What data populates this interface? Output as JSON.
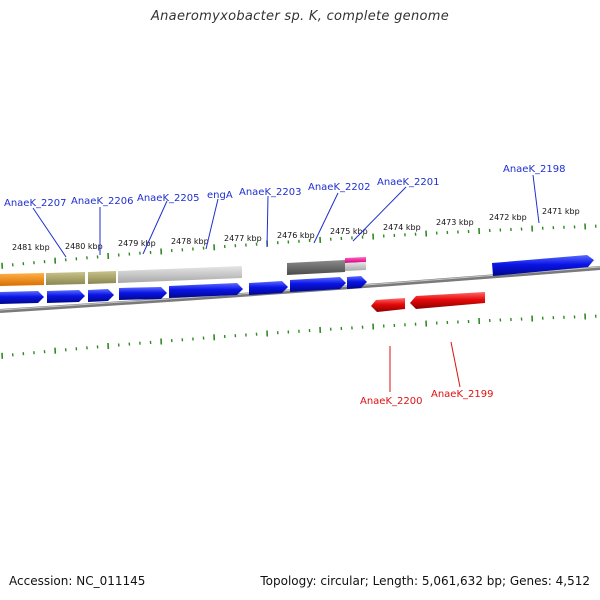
{
  "title": "Anaeromyxobacter sp. K, complete genome",
  "accession": "Accession: NC_011145",
  "topology": "Topology: circular; Length: 5,061,632 bp; Genes: 4,512",
  "scale_labels": [
    "2481 kbp",
    "2480 kbp",
    "2479 kbp",
    "2478 kbp",
    "2477 kbp",
    "2476 kbp",
    "2475 kbp",
    "2474 kbp",
    "2473 kbp",
    "2472 kbp",
    "2471 kbp"
  ],
  "gene_labels_forward": [
    "AnaeK_2207",
    "AnaeK_2206",
    "AnaeK_2205",
    "engA",
    "AnaeK_2203",
    "AnaeK_2202",
    "AnaeK_2201",
    "AnaeK_2198"
  ],
  "gene_labels_reverse": [
    "AnaeK_2200",
    "AnaeK_2199"
  ],
  "colors": {
    "forward_label": "#1f2fd0",
    "reverse_label": "#dd1111",
    "gene_blue": "#0a14e6",
    "gene_red": "#e60a0a",
    "tick_green": "#2e8b22",
    "backbone": "#8a8a8a"
  }
}
